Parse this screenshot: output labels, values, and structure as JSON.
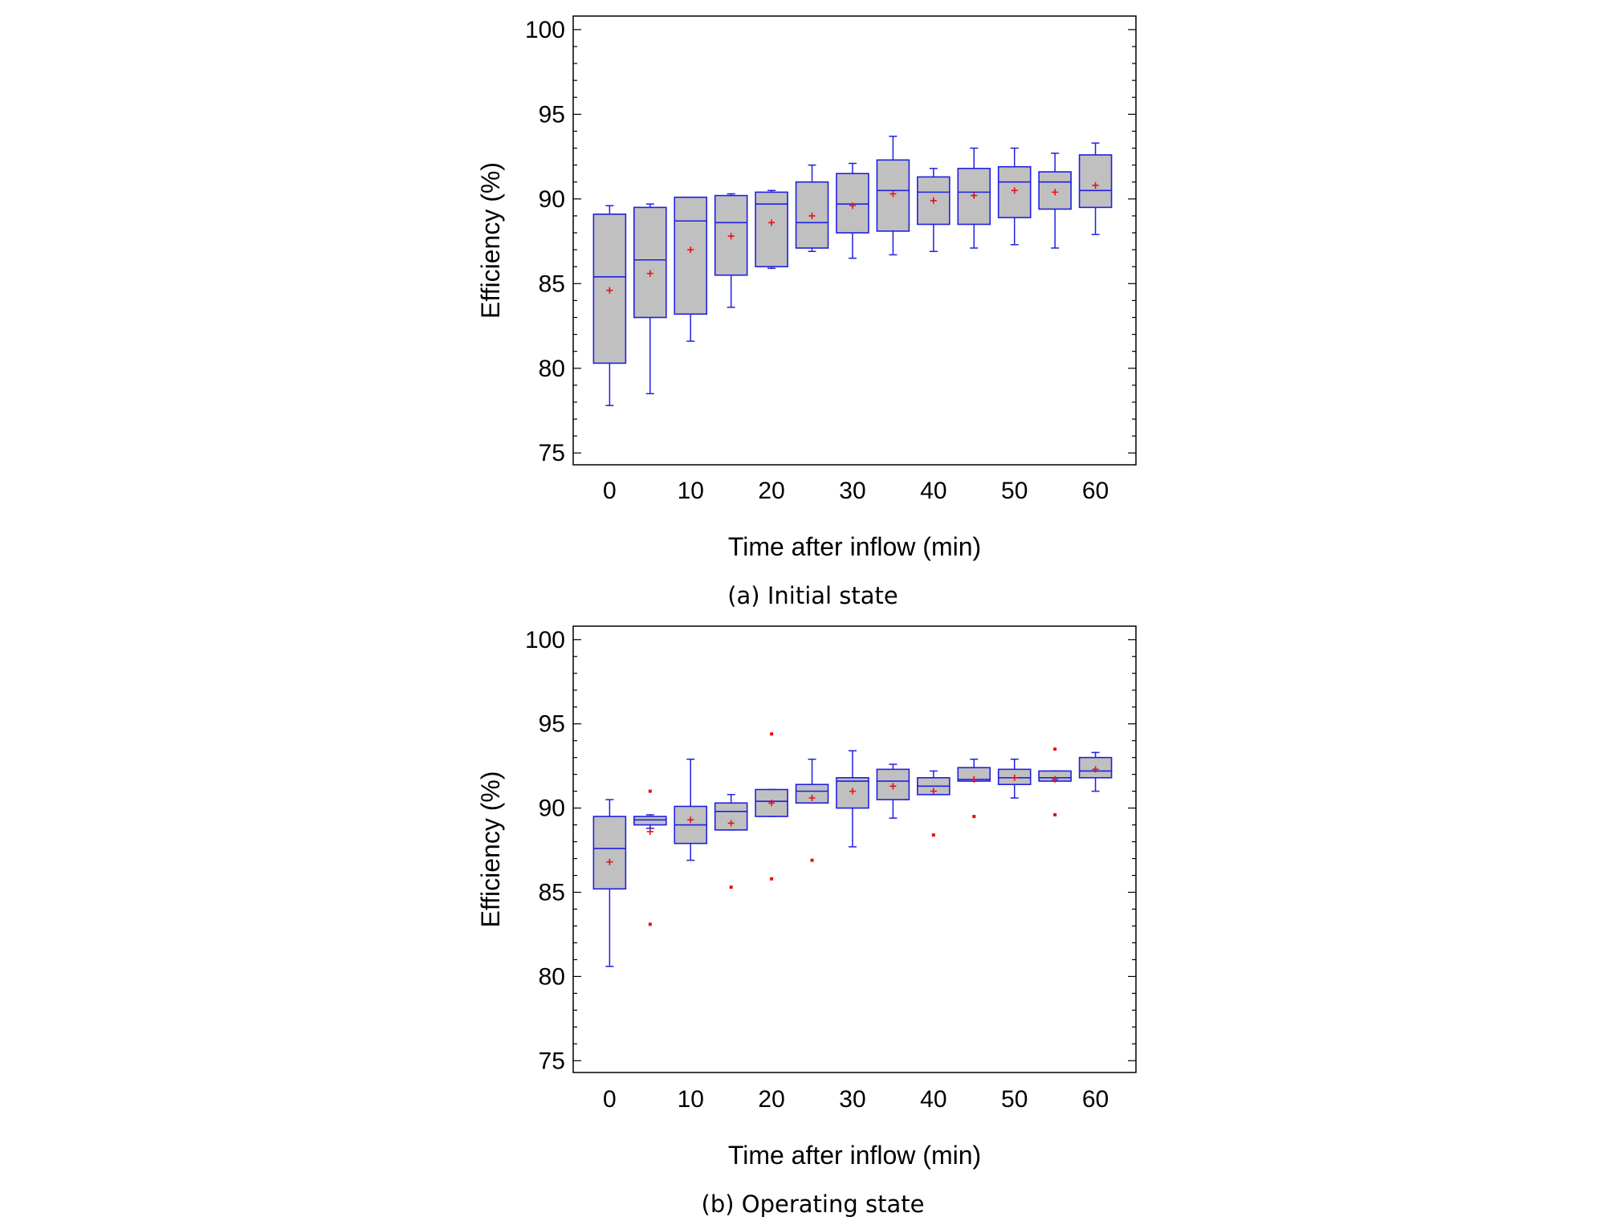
{
  "chart_data": [
    {
      "type": "box",
      "caption": "(a) Initial state",
      "xlabel": "Time after inflow (min)",
      "ylabel": "Efficiency (%)",
      "xticks": [
        0,
        10,
        20,
        30,
        40,
        50,
        60
      ],
      "xlim": [
        -4.5,
        65
      ],
      "ylim": [
        74.3,
        100.8
      ],
      "yticks": [
        75,
        80,
        85,
        90,
        95,
        100
      ],
      "grid": false,
      "box_color": "#2020e0",
      "box_fill": "#c0c0c0",
      "mean_color": "#e81010",
      "boxes": [
        {
          "x": 0,
          "lw": 77.8,
          "q1": 80.3,
          "med": 85.4,
          "q3": 89.1,
          "uw": 89.6,
          "mean": 84.6,
          "outliers": []
        },
        {
          "x": 5,
          "lw": 78.5,
          "q1": 83.0,
          "med": 86.4,
          "q3": 89.5,
          "uw": 89.7,
          "mean": 85.6,
          "outliers": []
        },
        {
          "x": 10,
          "lw": 81.6,
          "q1": 83.2,
          "med": 88.7,
          "q3": 90.1,
          "uw": 90.1,
          "mean": 87.0,
          "outliers": []
        },
        {
          "x": 15,
          "lw": 83.6,
          "q1": 85.5,
          "med": 88.6,
          "q3": 90.2,
          "uw": 90.3,
          "mean": 87.8,
          "outliers": []
        },
        {
          "x": 20,
          "lw": 85.9,
          "q1": 86.0,
          "med": 89.7,
          "q3": 90.4,
          "uw": 90.5,
          "mean": 88.6,
          "outliers": []
        },
        {
          "x": 25,
          "lw": 86.9,
          "q1": 87.1,
          "med": 88.6,
          "q3": 91.0,
          "uw": 92.0,
          "mean": 89.0,
          "outliers": []
        },
        {
          "x": 30,
          "lw": 86.5,
          "q1": 88.0,
          "med": 89.7,
          "q3": 91.5,
          "uw": 92.1,
          "mean": 89.6,
          "outliers": []
        },
        {
          "x": 35,
          "lw": 86.7,
          "q1": 88.1,
          "med": 90.5,
          "q3": 92.3,
          "uw": 93.7,
          "mean": 90.3,
          "outliers": []
        },
        {
          "x": 40,
          "lw": 86.9,
          "q1": 88.5,
          "med": 90.4,
          "q3": 91.3,
          "uw": 91.8,
          "mean": 89.9,
          "outliers": []
        },
        {
          "x": 45,
          "lw": 87.1,
          "q1": 88.5,
          "med": 90.4,
          "q3": 91.8,
          "uw": 93.0,
          "mean": 90.2,
          "outliers": []
        },
        {
          "x": 50,
          "lw": 87.3,
          "q1": 88.9,
          "med": 91.0,
          "q3": 91.9,
          "uw": 93.0,
          "mean": 90.5,
          "outliers": []
        },
        {
          "x": 55,
          "lw": 87.1,
          "q1": 89.4,
          "med": 91.0,
          "q3": 91.6,
          "uw": 92.7,
          "mean": 90.4,
          "outliers": []
        },
        {
          "x": 60,
          "lw": 87.9,
          "q1": 89.5,
          "med": 90.5,
          "q3": 92.6,
          "uw": 93.3,
          "mean": 90.8,
          "outliers": []
        }
      ]
    },
    {
      "type": "box",
      "caption": "(b) Operating state",
      "xlabel": "Time after inflow (min)",
      "ylabel": "Efficiency (%)",
      "xticks": [
        0,
        10,
        20,
        30,
        40,
        50,
        60
      ],
      "xlim": [
        -4.5,
        65
      ],
      "ylim": [
        74.3,
        100.8
      ],
      "yticks": [
        75,
        80,
        85,
        90,
        95,
        100
      ],
      "grid": false,
      "box_color": "#2020e0",
      "box_fill": "#c0c0c0",
      "mean_color": "#e81010",
      "boxes": [
        {
          "x": 0,
          "lw": 80.6,
          "q1": 85.2,
          "med": 87.6,
          "q3": 89.5,
          "uw": 90.5,
          "mean": 86.8,
          "outliers": []
        },
        {
          "x": 5,
          "lw": 88.8,
          "q1": 89.0,
          "med": 89.3,
          "q3": 89.5,
          "uw": 89.6,
          "mean": 88.6,
          "outliers": [
            91.0,
            83.1
          ]
        },
        {
          "x": 10,
          "lw": 86.9,
          "q1": 87.9,
          "med": 89.0,
          "q3": 90.1,
          "uw": 92.9,
          "mean": 89.3,
          "outliers": []
        },
        {
          "x": 15,
          "lw": 88.7,
          "q1": 88.7,
          "med": 89.8,
          "q3": 90.3,
          "uw": 90.8,
          "mean": 89.1,
          "outliers": [
            85.3
          ]
        },
        {
          "x": 20,
          "lw": 89.5,
          "q1": 89.5,
          "med": 90.4,
          "q3": 91.1,
          "uw": 91.1,
          "mean": 90.3,
          "outliers": [
            94.4,
            85.8
          ]
        },
        {
          "x": 25,
          "lw": 90.3,
          "q1": 90.3,
          "med": 91.0,
          "q3": 91.4,
          "uw": 92.9,
          "mean": 90.6,
          "outliers": [
            86.9
          ]
        },
        {
          "x": 30,
          "lw": 87.7,
          "q1": 90.0,
          "med": 91.6,
          "q3": 91.8,
          "uw": 93.4,
          "mean": 91.0,
          "outliers": []
        },
        {
          "x": 35,
          "lw": 89.4,
          "q1": 90.5,
          "med": 91.6,
          "q3": 92.3,
          "uw": 92.6,
          "mean": 91.3,
          "outliers": []
        },
        {
          "x": 40,
          "lw": 90.8,
          "q1": 90.8,
          "med": 91.3,
          "q3": 91.8,
          "uw": 92.2,
          "mean": 91.0,
          "outliers": [
            88.4
          ]
        },
        {
          "x": 45,
          "lw": 91.6,
          "q1": 91.6,
          "med": 91.7,
          "q3": 92.4,
          "uw": 92.9,
          "mean": 91.7,
          "outliers": [
            89.5
          ]
        },
        {
          "x": 50,
          "lw": 90.6,
          "q1": 91.4,
          "med": 91.8,
          "q3": 92.3,
          "uw": 92.9,
          "mean": 91.8,
          "outliers": []
        },
        {
          "x": 55,
          "lw": 91.6,
          "q1": 91.6,
          "med": 91.8,
          "q3": 92.2,
          "uw": 92.2,
          "mean": 91.7,
          "outliers": [
            93.5,
            89.6
          ]
        },
        {
          "x": 60,
          "lw": 91.0,
          "q1": 91.8,
          "med": 92.2,
          "q3": 93.0,
          "uw": 93.3,
          "mean": 92.3,
          "outliers": []
        }
      ]
    }
  ]
}
